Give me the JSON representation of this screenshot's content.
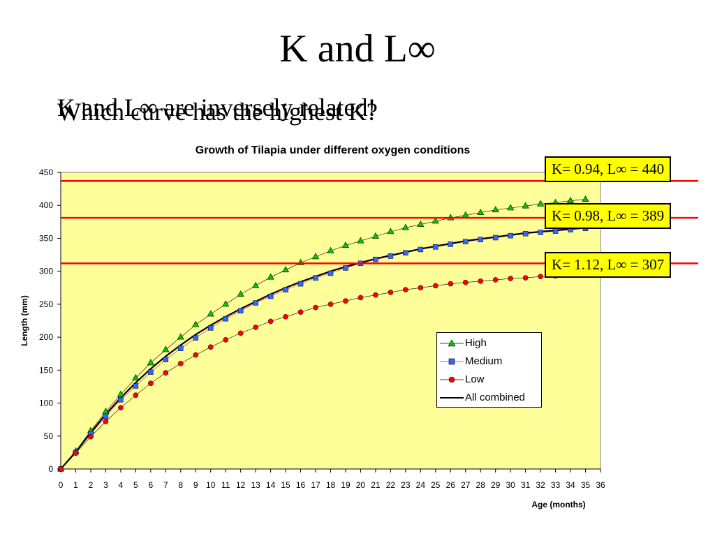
{
  "slide": {
    "title": "K and L∞",
    "subtitle_line1": "K and L∞ are inversely related!",
    "subtitle_line2": "Which curve has the highest K?"
  },
  "annotations": [
    {
      "label": "K= 0.94, L∞ = 440",
      "line_y": 437
    },
    {
      "label": "K= 0.98, L∞ = 389",
      "line_y": 381
    },
    {
      "label": "K= 1.12, L∞ = 307",
      "line_y": 312
    }
  ],
  "colors": {
    "plot_bg": "#ffff99",
    "high": "#00cc00",
    "medium": "#3366ff",
    "low": "#ff0000",
    "combined": "#000000",
    "ref_line": "#ff0000",
    "box_bg": "#ffff00"
  },
  "chart_data": {
    "type": "line",
    "title": "Growth of Tilapia under different oxygen conditions",
    "xlabel": "Age (months)",
    "ylabel": "Length (mm)",
    "xlim": [
      0,
      36
    ],
    "ylim": [
      0,
      450
    ],
    "xticks": [
      0,
      1,
      2,
      3,
      4,
      5,
      6,
      7,
      8,
      9,
      10,
      11,
      12,
      13,
      14,
      15,
      16,
      17,
      18,
      19,
      20,
      21,
      22,
      23,
      24,
      25,
      26,
      27,
      28,
      29,
      30,
      31,
      32,
      33,
      34,
      35,
      36
    ],
    "yticks": [
      0,
      50,
      100,
      150,
      200,
      250,
      300,
      350,
      400,
      450
    ],
    "legend_position": "center-right",
    "series": [
      {
        "name": "High",
        "marker": "triangle",
        "color": "#00cc00",
        "x": [
          0,
          1,
          2,
          3,
          4,
          5,
          6,
          7,
          8,
          9,
          10,
          11,
          12,
          13,
          14,
          15,
          16,
          17,
          18,
          19,
          20,
          21,
          22,
          23,
          24,
          25,
          26,
          27,
          28,
          29,
          30,
          31,
          32,
          33,
          34,
          35
        ],
        "y": [
          0,
          27,
          58,
          87,
          113,
          138,
          161,
          181,
          200,
          219,
          235,
          250,
          265,
          278,
          291,
          302,
          313,
          322,
          331,
          339,
          346,
          353,
          360,
          366,
          371,
          376,
          381,
          385,
          389,
          393,
          396,
          399,
          402,
          404,
          407,
          409
        ]
      },
      {
        "name": "Medium",
        "marker": "square",
        "color": "#3366ff",
        "x": [
          0,
          1,
          2,
          3,
          4,
          5,
          6,
          7,
          8,
          9,
          10,
          11,
          12,
          13,
          14,
          15,
          16,
          17,
          18,
          19,
          20,
          21,
          22,
          23,
          24,
          25,
          26,
          27,
          28,
          29,
          30,
          31,
          32,
          33,
          34,
          35
        ],
        "y": [
          0,
          25,
          53,
          80,
          105,
          126,
          147,
          166,
          183,
          199,
          214,
          228,
          240,
          252,
          262,
          272,
          281,
          290,
          297,
          305,
          312,
          318,
          323,
          328,
          333,
          337,
          341,
          345,
          348,
          351,
          354,
          357,
          359,
          361,
          363,
          365
        ]
      },
      {
        "name": "Low",
        "marker": "circle",
        "color": "#ff0000",
        "x": [
          0,
          1,
          2,
          3,
          4,
          5,
          6,
          7,
          8,
          9,
          10,
          11,
          12,
          13,
          14,
          15,
          16,
          17,
          18,
          19,
          20,
          21,
          22,
          23,
          24,
          25,
          26,
          27,
          28,
          29,
          30,
          31,
          32,
          33
        ],
        "y": [
          0,
          24,
          49,
          72,
          93,
          112,
          130,
          146,
          160,
          173,
          185,
          196,
          206,
          215,
          224,
          231,
          238,
          245,
          250,
          255,
          260,
          264,
          268,
          272,
          275,
          278,
          281,
          283,
          285,
          287,
          289,
          290,
          292,
          293
        ]
      },
      {
        "name": "All combined",
        "marker": "none",
        "color": "#000000",
        "x": [
          0,
          1,
          2,
          3,
          4,
          5,
          6,
          7,
          8,
          9,
          10,
          11,
          12,
          13,
          14,
          15,
          16,
          17,
          18,
          19,
          20,
          21,
          22,
          23,
          24,
          25,
          26,
          27,
          28,
          29,
          30,
          31,
          32,
          33,
          34,
          35
        ],
        "y": [
          0,
          26,
          55,
          83,
          108,
          131,
          152,
          171,
          188,
          204,
          218,
          231,
          243,
          254,
          265,
          275,
          284,
          292,
          300,
          307,
          313,
          319,
          324,
          329,
          334,
          338,
          342,
          346,
          349,
          352,
          355,
          358,
          360,
          362,
          364,
          366
        ]
      }
    ]
  }
}
